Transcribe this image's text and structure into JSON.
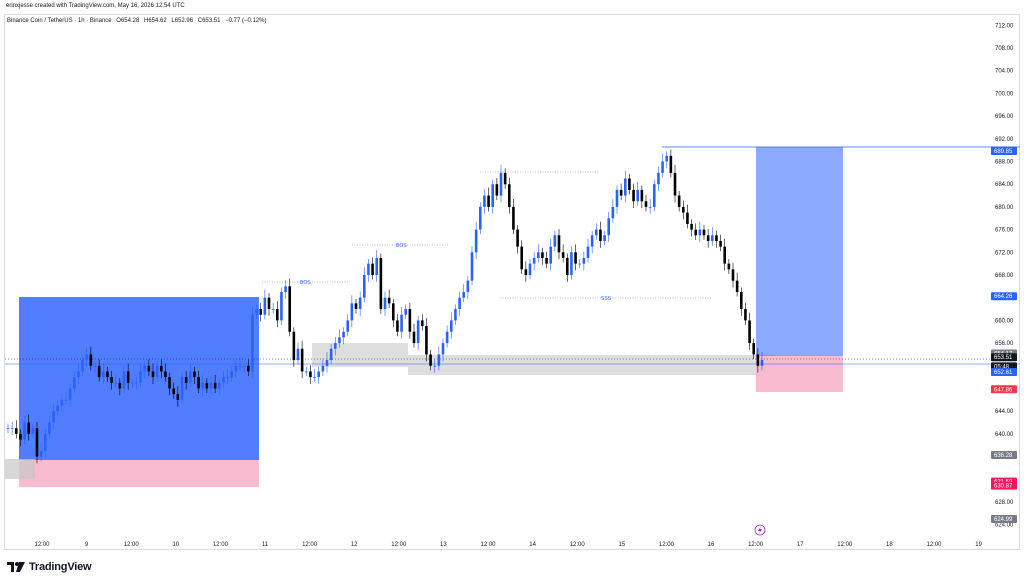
{
  "header": {
    "creator": "erinxjesse created with TradingView.com, May 16, 2026 12:54 UTC",
    "symbol": "Binance Coin / TetherUS · 1h · Binance",
    "ohlc": {
      "open": "O654.28",
      "high": "H654.62",
      "low": "L652.96",
      "close": "C653.51",
      "change": "−0.77 (−0.12%)"
    }
  },
  "price_axis": {
    "ticks": [
      "712.00",
      "708.00",
      "704.00",
      "700.00",
      "696.00",
      "692.00",
      "688.00",
      "684.00",
      "680.00",
      "676.00",
      "672.00",
      "668.00",
      "660.00",
      "656.00",
      "644.00",
      "640.00",
      "628.00",
      "624.00"
    ],
    "tags": [
      {
        "text": "689.92",
        "color": "#2962ff",
        "price": 689.92
      },
      {
        "text": "689.85",
        "color": "#2962ff",
        "price": 689.85
      },
      {
        "text": "664.26",
        "color": "#2962ff",
        "price": 664.26
      },
      {
        "text": "654.17",
        "color": "#787b86",
        "price": 654.17
      },
      {
        "text": "653.51",
        "color": "#131722",
        "price": 653.51
      },
      {
        "text": "05:48",
        "color": "#131722",
        "price": 651.9
      },
      {
        "text": "652.61",
        "color": "#2962ff",
        "price": 650.9
      },
      {
        "text": "647.86",
        "color": "#f23645",
        "price": 647.86
      },
      {
        "text": "636.28",
        "color": "#787b86",
        "price": 636.28
      },
      {
        "text": "631.59",
        "color": "#f7175d",
        "price": 631.59
      },
      {
        "text": "630.87",
        "color": "#f7175d",
        "price": 630.87
      },
      {
        "text": "624.99",
        "color": "#787b86",
        "price": 624.99
      }
    ]
  },
  "time_axis": {
    "labels": [
      "12:00",
      "9",
      "12:00",
      "10",
      "12:00",
      "11",
      "12:00",
      "12",
      "12:00",
      "13",
      "12:00",
      "14",
      "12:00",
      "15",
      "12:00",
      "16",
      "12:00",
      "17",
      "12:00",
      "18",
      "12:00",
      "19"
    ]
  },
  "annotations": {
    "bos1": "BOS",
    "bos2": "BOS",
    "sss": "SSS"
  },
  "footer": {
    "brand": "TradingView"
  },
  "colors": {
    "up": "#2962ff",
    "down": "#000000",
    "long_profit": "#2962ff",
    "short_stop": "#f7a8c2",
    "zone_gray": "#c8c8c8"
  },
  "chart_data": {
    "type": "candlestick",
    "title": "Binance Coin / TetherUS · 1h · Binance",
    "ylim": [
      622,
      714
    ],
    "x_categories": [
      "12:00",
      "9",
      "12:00",
      "10",
      "12:00",
      "11",
      "12:00",
      "12",
      "12:00",
      "13",
      "12:00",
      "14",
      "12:00",
      "15",
      "12:00",
      "16",
      "12:00",
      "17",
      "12:00",
      "18",
      "12:00",
      "19"
    ],
    "close_path": [
      641,
      641,
      640,
      639,
      642,
      640,
      641,
      636,
      637,
      640,
      642,
      644,
      645,
      646,
      646,
      648,
      650,
      651,
      653,
      654,
      652,
      652,
      650,
      651,
      650,
      649,
      649,
      648,
      651,
      649,
      649,
      649,
      651,
      652,
      651,
      650,
      652,
      651,
      650,
      648,
      647,
      646,
      650,
      649,
      651,
      650,
      648,
      649,
      648,
      649,
      648,
      649,
      650,
      650,
      651,
      652,
      652,
      652,
      651,
      661,
      662,
      661,
      664,
      662,
      662,
      660,
      665,
      666,
      658,
      653,
      655,
      651,
      651,
      650,
      650,
      651,
      652,
      653,
      655,
      656,
      657,
      658,
      660,
      663,
      662,
      664,
      668,
      670,
      668,
      671,
      662,
      664,
      663,
      660,
      658,
      661,
      662,
      658,
      656,
      660,
      659,
      654,
      652,
      652,
      654,
      656,
      658,
      660,
      662,
      664,
      665,
      667,
      672,
      676,
      680,
      682,
      680,
      684,
      682,
      686,
      684,
      680,
      676,
      673,
      669,
      668,
      670,
      671,
      672,
      671,
      670,
      673,
      675,
      672,
      671,
      668,
      672,
      670,
      670,
      671,
      673,
      675,
      676,
      674,
      675,
      678,
      680,
      683,
      682,
      685,
      683,
      681,
      683,
      681,
      680,
      680,
      684,
      686,
      688,
      689,
      686,
      682,
      680,
      679,
      677,
      676,
      675,
      676,
      675,
      674,
      675,
      674,
      673,
      670,
      669,
      667,
      665,
      662,
      660,
      656,
      654,
      652,
      653
    ]
  }
}
